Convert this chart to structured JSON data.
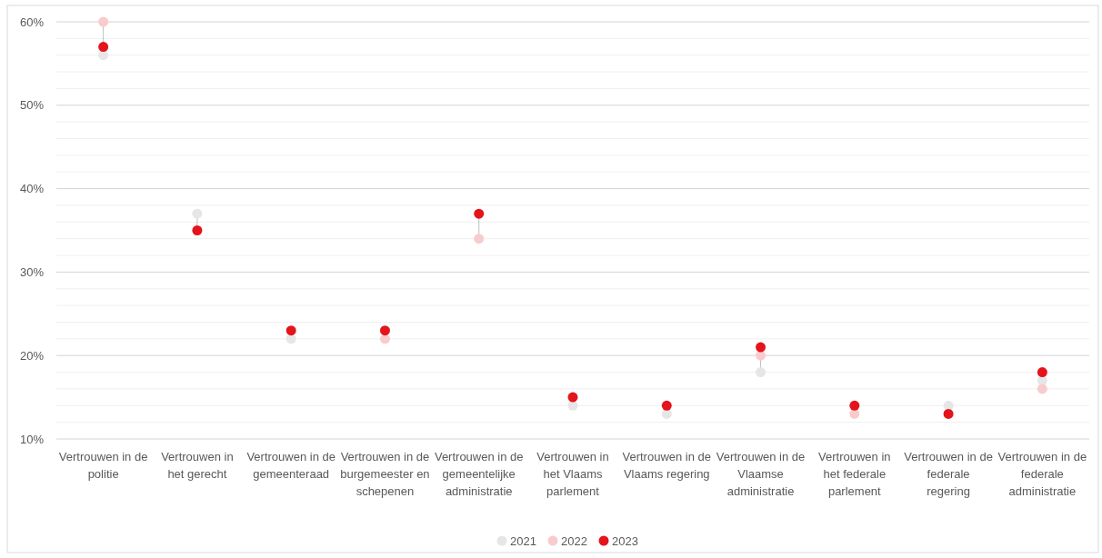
{
  "chart_data": {
    "type": "scatter",
    "categories": [
      "Vertrouwen in de politie",
      "Vertrouwen in het gerecht",
      "Vertrouwen in de gemeenteraad",
      "Vertrouwen in de burgemeester en schepenen",
      "Vertrouwen in de gemeentelijke administratie",
      "Vertrouwen in het Vlaams parlement",
      "Vertrouwen in de Vlaams regering",
      "Vertrouwen in de Vlaamse administratie",
      "Vertrouwen in het federale parlement",
      "Vertrouwen in de federale regering",
      "Vertrouwen in de federale administratie"
    ],
    "series": [
      {
        "name": "2021",
        "color": "#e6e6e6",
        "values": [
          56,
          37,
          22,
          null,
          null,
          14,
          13,
          18,
          null,
          14,
          17
        ]
      },
      {
        "name": "2022",
        "color": "#f8cccc",
        "values": [
          60,
          null,
          null,
          22,
          34,
          null,
          null,
          20,
          13,
          null,
          16
        ]
      },
      {
        "name": "2023",
        "color": "#e3141b",
        "values": [
          57,
          35,
          23,
          23,
          37,
          15,
          14,
          21,
          14,
          13,
          18
        ]
      }
    ],
    "ylim": [
      10,
      60
    ],
    "yticks": [
      {
        "value": 10,
        "label": "10%"
      },
      {
        "value": 12,
        "label": null
      },
      {
        "value": 14,
        "label": null
      },
      {
        "value": 16,
        "label": null
      },
      {
        "value": 18,
        "label": null
      },
      {
        "value": 20,
        "label": "20%"
      },
      {
        "value": 22,
        "label": null
      },
      {
        "value": 24,
        "label": null
      },
      {
        "value": 26,
        "label": null
      },
      {
        "value": 28,
        "label": null
      },
      {
        "value": 30,
        "label": "30%"
      },
      {
        "value": 32,
        "label": null
      },
      {
        "value": 34,
        "label": null
      },
      {
        "value": 36,
        "label": null
      },
      {
        "value": 38,
        "label": null
      },
      {
        "value": 40,
        "label": "40%"
      },
      {
        "value": 42,
        "label": null
      },
      {
        "value": 44,
        "label": null
      },
      {
        "value": 46,
        "label": null
      },
      {
        "value": 48,
        "label": null
      },
      {
        "value": 50,
        "label": "50%"
      },
      {
        "value": 52,
        "label": null
      },
      {
        "value": 54,
        "label": null
      },
      {
        "value": 56,
        "label": null
      },
      {
        "value": 58,
        "label": null
      },
      {
        "value": 60,
        "label": "60%"
      }
    ],
    "grid": "y",
    "legend": "bottom",
    "marker": "circle"
  }
}
